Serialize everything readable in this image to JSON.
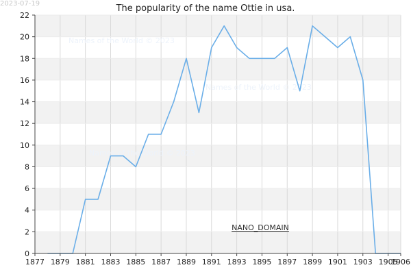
{
  "date_stamp": "2023-07-19",
  "watermark_text": "Names of the World © 2023",
  "nano_label": "NANO_DOMAIN",
  "colors": {
    "line": "#6aaee8",
    "band": "#f2f2f2",
    "grid": "#d9d9d9",
    "axis": "#444444"
  },
  "chart_data": {
    "type": "line",
    "title": "The popularity of the name Ottie in usa.",
    "xlabel": "",
    "ylabel": "",
    "xlim": [
      1877,
      1906
    ],
    "ylim": [
      0,
      22
    ],
    "x_ticks": [
      1877,
      1879,
      1881,
      1883,
      1885,
      1887,
      1889,
      1891,
      1893,
      1895,
      1897,
      1899,
      1901,
      1903,
      1905,
      1906
    ],
    "y_ticks": [
      0,
      2,
      4,
      6,
      8,
      10,
      12,
      14,
      16,
      18,
      20,
      22
    ],
    "grid": true,
    "legend": "none",
    "series": [
      {
        "x": [
          1878,
          1879,
          1880,
          1881,
          1882,
          1883,
          1884,
          1885,
          1886,
          1887,
          1888,
          1889,
          1890,
          1891,
          1892,
          1893,
          1894,
          1895,
          1896,
          1897,
          1898,
          1899,
          1900,
          1901,
          1902,
          1903,
          1904,
          1905,
          1906
        ],
        "values": [
          0,
          0,
          0,
          5,
          5,
          9,
          9,
          8,
          11,
          11,
          14,
          18,
          13,
          19,
          21,
          19,
          18,
          18,
          18,
          19,
          15,
          21,
          20,
          19,
          20,
          16,
          0,
          0,
          0
        ]
      }
    ]
  }
}
